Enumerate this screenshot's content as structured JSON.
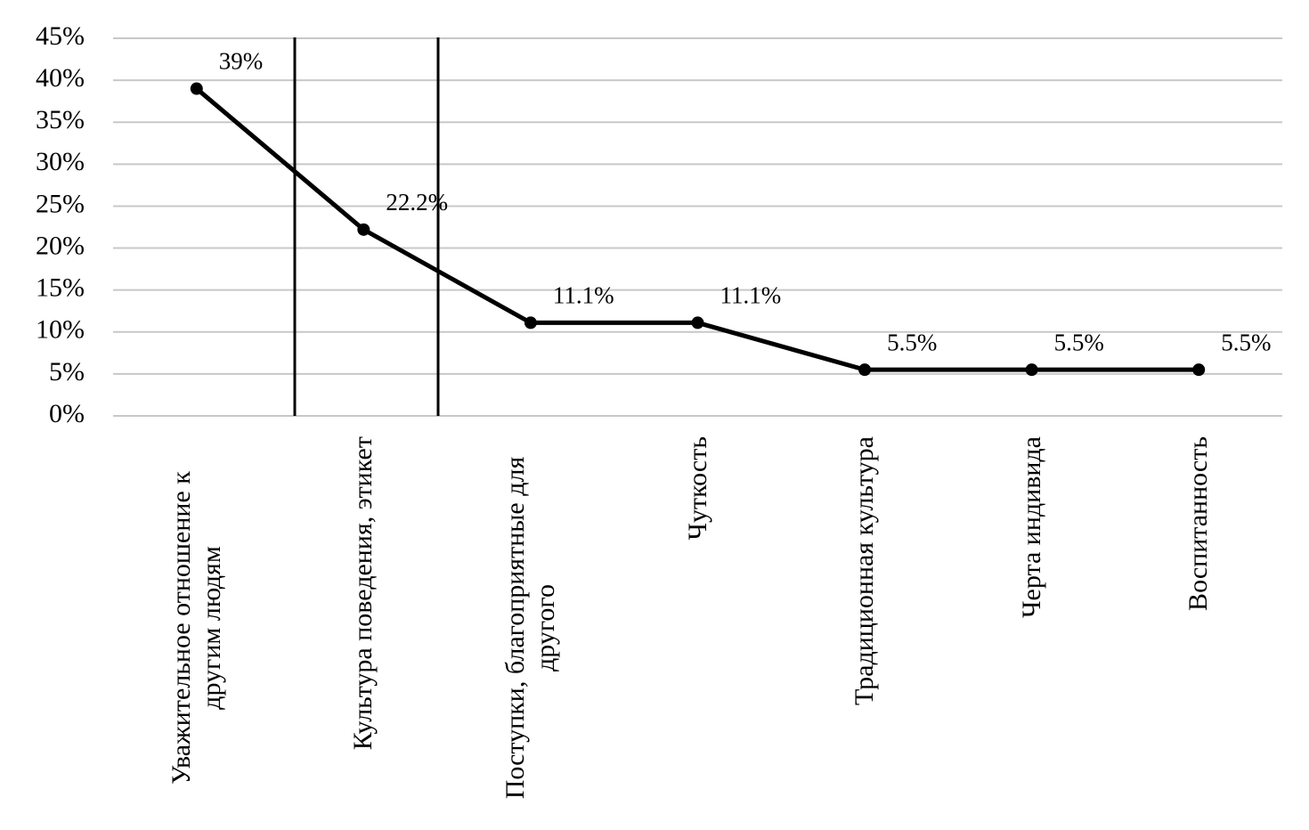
{
  "chart_data": {
    "type": "line",
    "categories": [
      "Уважительное отношение к другим людям",
      "Культура поведения, этикет",
      "Поступки, благоприятные для другого",
      "Чуткость",
      "Традиционная культура",
      "Черта индивида",
      "Воспитанность"
    ],
    "values": [
      39,
      22.2,
      11.1,
      11.1,
      5.5,
      5.5,
      5.5
    ],
    "value_labels": [
      "39%",
      "22.2%",
      "11.1%",
      "11.1%",
      "5.5%",
      "5.5%",
      "5.5%"
    ],
    "color": "#000000",
    "ylim": [
      0,
      45
    ],
    "yticks": [
      {
        "value": 0,
        "label": "0%"
      },
      {
        "value": 5,
        "label": "5%"
      },
      {
        "value": 10,
        "label": "10%"
      },
      {
        "value": 15,
        "label": "15%"
      },
      {
        "value": 20,
        "label": "20%"
      },
      {
        "value": 25,
        "label": "25%"
      },
      {
        "value": 30,
        "label": "30%"
      },
      {
        "value": 35,
        "label": "35%"
      },
      {
        "value": 40,
        "label": "40%"
      },
      {
        "value": 45,
        "label": "45%"
      }
    ],
    "grid": true
  }
}
